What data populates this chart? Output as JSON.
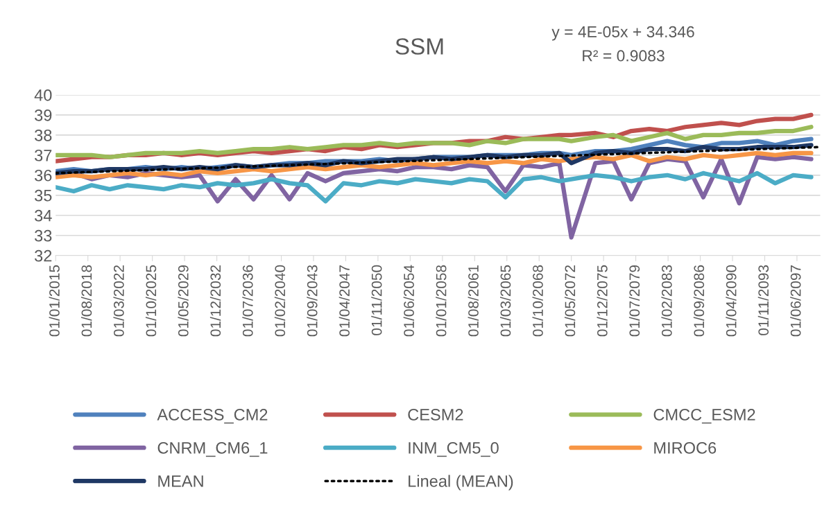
{
  "chart_data": {
    "type": "line",
    "title": "SSM",
    "annotations": [
      "y = 4E-05x + 34.346",
      "R² = 0.9083"
    ],
    "x": [
      "2015-01",
      "2017-01",
      "2019-01",
      "2021-01",
      "2023-01",
      "2025-01",
      "2027-01",
      "2029-01",
      "2031-01",
      "2033-01",
      "2035-01",
      "2037-01",
      "2039-01",
      "2041-01",
      "2043-01",
      "2045-01",
      "2047-01",
      "2049-01",
      "2051-01",
      "2053-01",
      "2055-01",
      "2057-01",
      "2059-01",
      "2061-01",
      "2063-01",
      "2065-01",
      "2067-01",
      "2069-01",
      "2071-01",
      "2072-05",
      "2075-01",
      "2077-01",
      "2079-01",
      "2081-01",
      "2083-01",
      "2085-01",
      "2087-01",
      "2089-01",
      "2091-01",
      "2093-01",
      "2095-01",
      "2097-01",
      "2099-01"
    ],
    "series": [
      {
        "name": "ACCESS_CM2",
        "color": "#4f81bd",
        "values": [
          36.2,
          36.3,
          36.2,
          36.3,
          36.3,
          36.4,
          36.3,
          36.4,
          36.3,
          36.4,
          36.5,
          36.4,
          36.5,
          36.6,
          36.6,
          36.7,
          36.7,
          36.7,
          36.8,
          36.7,
          36.8,
          36.9,
          36.9,
          36.9,
          37.0,
          37.0,
          37.0,
          37.1,
          37.1,
          37.0,
          37.2,
          37.2,
          37.3,
          37.5,
          37.7,
          37.5,
          37.4,
          37.6,
          37.6,
          37.7,
          37.5,
          37.7,
          37.8
        ]
      },
      {
        "name": "CESM2",
        "color": "#c0504d",
        "values": [
          36.7,
          36.8,
          36.9,
          36.9,
          37.0,
          37.0,
          37.1,
          37.0,
          37.1,
          37.0,
          37.1,
          37.2,
          37.1,
          37.2,
          37.3,
          37.2,
          37.4,
          37.3,
          37.5,
          37.4,
          37.5,
          37.6,
          37.6,
          37.7,
          37.7,
          37.9,
          37.8,
          37.9,
          38.0,
          38.0,
          38.1,
          37.9,
          38.2,
          38.3,
          38.2,
          38.4,
          38.5,
          38.6,
          38.5,
          38.7,
          38.8,
          38.8,
          39.0
        ]
      },
      {
        "name": "CMCC_ESM2",
        "color": "#9bbb59",
        "values": [
          37.0,
          37.0,
          37.0,
          36.9,
          37.0,
          37.1,
          37.1,
          37.1,
          37.2,
          37.1,
          37.2,
          37.3,
          37.3,
          37.4,
          37.3,
          37.4,
          37.5,
          37.5,
          37.6,
          37.5,
          37.6,
          37.6,
          37.6,
          37.5,
          37.7,
          37.6,
          37.8,
          37.8,
          37.8,
          37.7,
          37.9,
          38.0,
          37.7,
          37.9,
          38.1,
          37.8,
          38.0,
          38.0,
          38.1,
          38.1,
          38.2,
          38.2,
          38.4
        ]
      },
      {
        "name": "CNRM_CM6_1",
        "color": "#8064a2",
        "values": [
          36.0,
          36.1,
          35.8,
          36.0,
          35.9,
          36.1,
          36.0,
          35.9,
          36.0,
          34.7,
          35.8,
          34.8,
          36.0,
          34.8,
          36.1,
          35.7,
          36.1,
          36.2,
          36.3,
          36.2,
          36.4,
          36.4,
          36.3,
          36.5,
          36.4,
          35.2,
          36.5,
          36.4,
          36.6,
          32.9,
          36.6,
          36.7,
          34.8,
          36.6,
          36.8,
          36.7,
          34.9,
          36.8,
          34.6,
          36.9,
          36.8,
          36.9,
          36.8
        ]
      },
      {
        "name": "INM_CM5_0",
        "color": "#4bacc6",
        "values": [
          35.4,
          35.2,
          35.5,
          35.3,
          35.5,
          35.4,
          35.3,
          35.5,
          35.4,
          35.6,
          35.5,
          35.6,
          35.8,
          35.6,
          35.5,
          34.7,
          35.6,
          35.5,
          35.7,
          35.6,
          35.8,
          35.7,
          35.6,
          35.8,
          35.7,
          34.9,
          35.8,
          35.9,
          35.7,
          35.8,
          36.0,
          35.9,
          35.7,
          35.9,
          36.0,
          35.8,
          36.1,
          35.9,
          35.7,
          36.1,
          35.6,
          36.0,
          35.9
        ]
      },
      {
        "name": "MIROC6",
        "color": "#f79646",
        "values": [
          35.9,
          36.0,
          35.9,
          36.0,
          36.1,
          36.0,
          36.1,
          36.0,
          36.2,
          36.1,
          36.2,
          36.3,
          36.2,
          36.3,
          36.4,
          36.3,
          36.4,
          36.5,
          36.4,
          36.5,
          36.6,
          36.5,
          36.6,
          36.7,
          36.6,
          36.7,
          36.6,
          36.8,
          36.7,
          36.8,
          36.9,
          36.8,
          37.0,
          36.7,
          36.9,
          36.8,
          37.0,
          36.9,
          37.0,
          37.1,
          37.0,
          37.1,
          37.1
        ]
      },
      {
        "name": "MEAN",
        "color": "#1f3864",
        "values": [
          36.1,
          36.2,
          36.2,
          36.3,
          36.3,
          36.3,
          36.4,
          36.3,
          36.4,
          36.3,
          36.5,
          36.4,
          36.5,
          36.5,
          36.6,
          36.5,
          36.7,
          36.6,
          36.7,
          36.8,
          36.8,
          36.9,
          36.8,
          36.9,
          37.0,
          36.9,
          37.0,
          37.0,
          37.1,
          36.6,
          37.1,
          37.2,
          37.1,
          37.3,
          37.3,
          37.2,
          37.4,
          37.3,
          37.3,
          37.4,
          37.4,
          37.4,
          37.5
        ]
      },
      {
        "name": "Lineal (MEAN)",
        "type": "line",
        "color": "#000000",
        "line_style": "dotted",
        "x": [
          "2015-01",
          "2099-12"
        ],
        "values": [
          36.1,
          37.4
        ]
      }
    ],
    "xlim": [
      "2015-01-01",
      "2100-01-01"
    ],
    "xticks": [
      {
        "value": "2015-01-01",
        "label": "01/01/2015"
      },
      {
        "value": "2018-08-01",
        "label": "01/08/2018"
      },
      {
        "value": "2022-03-01",
        "label": "01/03/2022"
      },
      {
        "value": "2025-10-01",
        "label": "01/10/2025"
      },
      {
        "value": "2029-05-01",
        "label": "01/05/2029"
      },
      {
        "value": "2032-12-01",
        "label": "01/12/2032"
      },
      {
        "value": "2036-07-01",
        "label": "01/07/2036"
      },
      {
        "value": "2040-02-01",
        "label": "01/02/2040"
      },
      {
        "value": "2043-09-01",
        "label": "01/09/2043"
      },
      {
        "value": "2047-04-01",
        "label": "01/04/2047"
      },
      {
        "value": "2050-11-01",
        "label": "01/11/2050"
      },
      {
        "value": "2054-06-01",
        "label": "01/06/2054"
      },
      {
        "value": "2058-01-01",
        "label": "01/01/2058"
      },
      {
        "value": "2061-08-01",
        "label": "01/08/2061"
      },
      {
        "value": "2065-03-01",
        "label": "01/03/2065"
      },
      {
        "value": "2068-10-01",
        "label": "01/10/2068"
      },
      {
        "value": "2072-05-01",
        "label": "01/05/2072"
      },
      {
        "value": "2075-12-01",
        "label": "01/12/2075"
      },
      {
        "value": "2079-07-01",
        "label": "01/07/2079"
      },
      {
        "value": "2083-02-01",
        "label": "01/02/2083"
      },
      {
        "value": "2086-09-01",
        "label": "01/09/2086"
      },
      {
        "value": "2090-04-01",
        "label": "01/04/2090"
      },
      {
        "value": "2093-11-01",
        "label": "01/11/2093"
      },
      {
        "value": "2097-06-01",
        "label": "01/06/2097"
      }
    ],
    "ylim": [
      32,
      40
    ],
    "yticks": [
      32,
      33,
      34,
      35,
      36,
      37,
      38,
      39,
      40
    ],
    "grid": "y",
    "legend": "bottom",
    "line_style": "solid"
  }
}
